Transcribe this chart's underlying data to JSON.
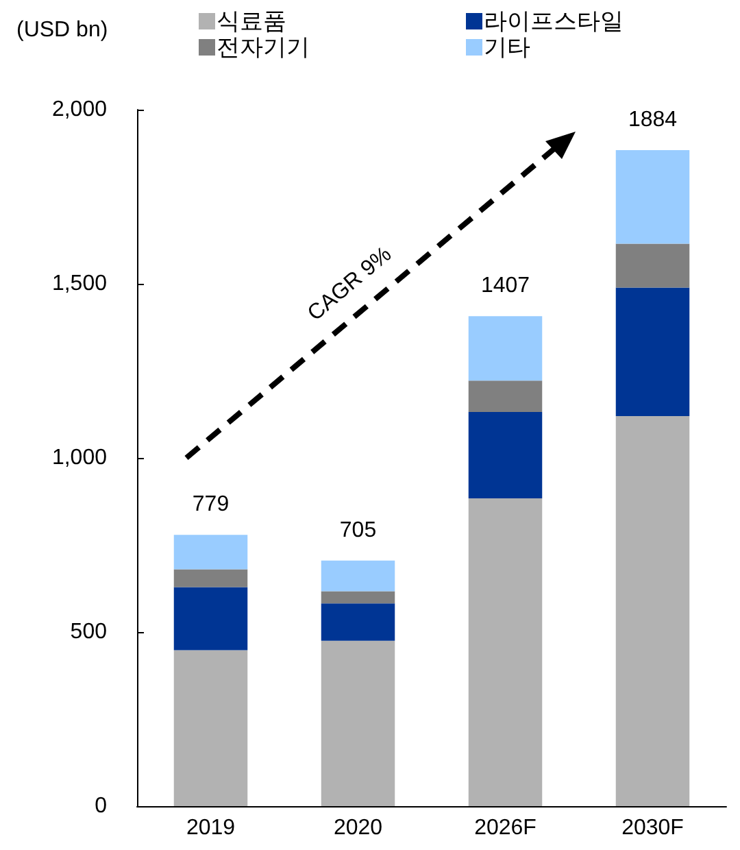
{
  "chart_data": {
    "type": "bar",
    "stacked": true,
    "ylabel": "(USD bn)",
    "categories": [
      "2019",
      "2020",
      "2026F",
      "2030F"
    ],
    "series": [
      {
        "name": "식료품",
        "color": "#b2b2b2",
        "values": [
          448,
          475,
          884,
          1120
        ]
      },
      {
        "name": "라이프스타일",
        "color": "#003594",
        "values": [
          181,
          107,
          248,
          369
        ]
      },
      {
        "name": "전자기기",
        "color": "#808080",
        "values": [
          51,
          35,
          90,
          126
        ]
      },
      {
        "name": "기타",
        "color": "#99ccff",
        "values": [
          99,
          88,
          185,
          269
        ]
      }
    ],
    "totals": [
      "779",
      "705",
      "1407",
      "1884"
    ],
    "ylim": [
      0,
      2000
    ],
    "yticks": [
      0,
      500,
      {
        "value": 1000,
        "label": "1,000"
      },
      {
        "value": 1500,
        "label": "1,500"
      },
      {
        "value": 2000,
        "label": "2,000"
      }
    ],
    "annotations": [
      "CAGR 9%"
    ],
    "grid": false,
    "legend": "top"
  }
}
